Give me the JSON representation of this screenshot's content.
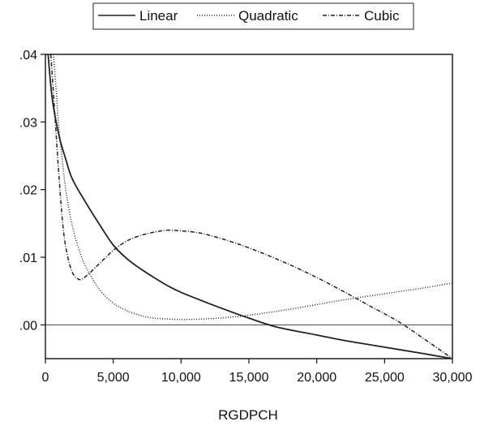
{
  "chart_data": {
    "type": "line",
    "title": "",
    "xlabel": "RGDPCH",
    "ylabel": "",
    "xlim": [
      0,
      30000
    ],
    "ylim": [
      -0.005,
      0.04
    ],
    "x_ticks": [
      0,
      5000,
      10000,
      15000,
      20000,
      25000,
      30000
    ],
    "x_tick_labels": [
      "0",
      "5,000",
      "10,000",
      "15,000",
      "20,000",
      "25,000",
      "30,000"
    ],
    "y_ticks": [
      0.0,
      0.01,
      0.02,
      0.03,
      0.04
    ],
    "y_tick_labels": [
      ".00",
      ".01",
      ".02",
      ".03",
      ".04"
    ],
    "grid": false,
    "reference_line_y": 0,
    "legend_position": "top-center",
    "series": [
      {
        "name": "Linear",
        "style": "solid",
        "points": [
          [
            200,
            0.04
          ],
          [
            500,
            0.0335
          ],
          [
            1000,
            0.028
          ],
          [
            1500,
            0.0245
          ],
          [
            2000,
            0.0215
          ],
          [
            3000,
            0.018
          ],
          [
            4000,
            0.0148
          ],
          [
            5000,
            0.0118
          ],
          [
            6000,
            0.0098
          ],
          [
            7000,
            0.0083
          ],
          [
            8000,
            0.007
          ],
          [
            9000,
            0.0058
          ],
          [
            10000,
            0.0048
          ],
          [
            12000,
            0.0032
          ],
          [
            14000,
            0.0017
          ],
          [
            15000,
            0.001
          ],
          [
            17000,
            -0.0003
          ],
          [
            20000,
            -0.0015
          ],
          [
            22000,
            -0.0023
          ],
          [
            25000,
            -0.0033
          ],
          [
            28000,
            -0.0043
          ],
          [
            30000,
            -0.005
          ]
        ]
      },
      {
        "name": "Quadratic",
        "style": "dotted",
        "points": [
          [
            600,
            0.04
          ],
          [
            800,
            0.0345
          ],
          [
            1000,
            0.029
          ],
          [
            1500,
            0.02
          ],
          [
            2000,
            0.0145
          ],
          [
            2500,
            0.011
          ],
          [
            3000,
            0.0085
          ],
          [
            4000,
            0.0052
          ],
          [
            5000,
            0.0032
          ],
          [
            6000,
            0.0021
          ],
          [
            7000,
            0.0014
          ],
          [
            8000,
            0.001
          ],
          [
            10000,
            0.0008
          ],
          [
            12000,
            0.0009
          ],
          [
            14000,
            0.0012
          ],
          [
            16000,
            0.0017
          ],
          [
            18000,
            0.0023
          ],
          [
            20000,
            0.003
          ],
          [
            22000,
            0.0037
          ],
          [
            24000,
            0.0043
          ],
          [
            26000,
            0.0049
          ],
          [
            28000,
            0.0055
          ],
          [
            30000,
            0.0062
          ]
        ]
      },
      {
        "name": "Cubic",
        "style": "dash-dot",
        "points": [
          [
            400,
            0.04
          ],
          [
            700,
            0.031
          ],
          [
            1000,
            0.022
          ],
          [
            1300,
            0.0145
          ],
          [
            1600,
            0.0105
          ],
          [
            2000,
            0.0077
          ],
          [
            2500,
            0.0067
          ],
          [
            3000,
            0.0072
          ],
          [
            4000,
            0.0091
          ],
          [
            5000,
            0.011
          ],
          [
            6000,
            0.0124
          ],
          [
            7000,
            0.0132
          ],
          [
            8000,
            0.0137
          ],
          [
            9000,
            0.014
          ],
          [
            10000,
            0.0139
          ],
          [
            11000,
            0.0137
          ],
          [
            12000,
            0.0133
          ],
          [
            14000,
            0.0121
          ],
          [
            16000,
            0.0106
          ],
          [
            18000,
            0.0089
          ],
          [
            20000,
            0.007
          ],
          [
            22000,
            0.0049
          ],
          [
            24000,
            0.0027
          ],
          [
            26000,
            0.0005
          ],
          [
            28000,
            -0.0022
          ],
          [
            30000,
            -0.005
          ]
        ]
      }
    ]
  }
}
